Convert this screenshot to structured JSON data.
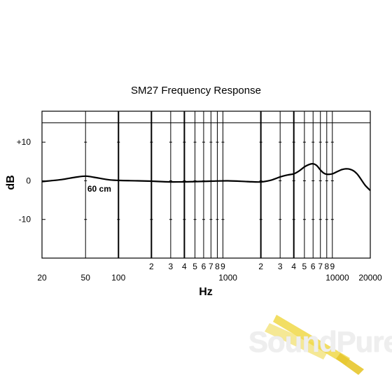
{
  "chart_data": {
    "type": "line",
    "title": "SM27 Frequency Response",
    "xlabel": "Hz",
    "ylabel": "dB",
    "x_scale": "log",
    "xlim": [
      20,
      20000
    ],
    "ylim": [
      -20,
      18
    ],
    "reference_line_y": 15,
    "grid": true,
    "y_ticks": [
      {
        "value": 10,
        "label": "+10"
      },
      {
        "value": 0,
        "label": "0"
      },
      {
        "value": -10,
        "label": "-10"
      }
    ],
    "x_major_ticks": [
      {
        "value": 20,
        "label": "20"
      },
      {
        "value": 50,
        "label": "50"
      },
      {
        "value": 100,
        "label": "100"
      },
      {
        "value": 1000,
        "label": "1000"
      },
      {
        "value": 10000,
        "label": "10000"
      },
      {
        "value": 20000,
        "label": "20000"
      }
    ],
    "x_minor_ticks": [
      {
        "value": 200,
        "label": "2"
      },
      {
        "value": 300,
        "label": "3"
      },
      {
        "value": 400,
        "label": "4"
      },
      {
        "value": 500,
        "label": "5"
      },
      {
        "value": 600,
        "label": "6"
      },
      {
        "value": 700,
        "label": "7"
      },
      {
        "value": 800,
        "label": "8"
      },
      {
        "value": 900,
        "label": "9"
      },
      {
        "value": 2000,
        "label": "2"
      },
      {
        "value": 3000,
        "label": "3"
      },
      {
        "value": 4000,
        "label": "4"
      },
      {
        "value": 5000,
        "label": "5"
      },
      {
        "value": 6000,
        "label": "6"
      },
      {
        "value": 7000,
        "label": "7"
      },
      {
        "value": 8000,
        "label": "8"
      },
      {
        "value": 9000,
        "label": "9"
      }
    ],
    "series": [
      {
        "annotation": "60 cm",
        "x": [
          20,
          30,
          40,
          50,
          60,
          80,
          100,
          150,
          200,
          300,
          500,
          700,
          1000,
          1500,
          2000,
          2500,
          3000,
          3500,
          4000,
          4500,
          5000,
          5500,
          6000,
          6500,
          7000,
          7500,
          8000,
          9000,
          10000,
          11000,
          12000,
          13000,
          14000,
          15000,
          16000,
          18000,
          20000
        ],
        "y": [
          -0.2,
          0.3,
          0.9,
          1.2,
          0.9,
          0.3,
          0.1,
          0.0,
          -0.1,
          -0.3,
          -0.2,
          -0.1,
          0.0,
          -0.2,
          -0.3,
          0.2,
          1.0,
          1.5,
          1.8,
          2.6,
          3.6,
          4.2,
          4.4,
          3.9,
          2.8,
          2.0,
          1.7,
          1.8,
          2.4,
          2.9,
          3.1,
          3.0,
          2.6,
          1.9,
          0.9,
          -1.2,
          -2.5
        ]
      }
    ]
  },
  "watermark": {
    "text": "SoundPure",
    "accent_color": "#f0d848"
  }
}
